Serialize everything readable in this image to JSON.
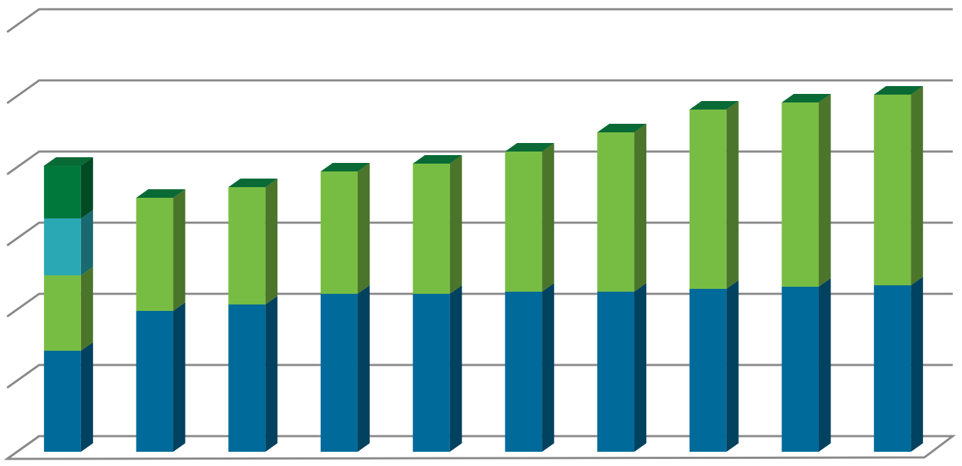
{
  "chart_data": {
    "type": "bar",
    "stacked": true,
    "three_d": true,
    "categories": [
      null,
      null,
      null,
      null,
      null,
      null,
      null,
      null,
      null,
      null
    ],
    "series": [
      {
        "color": "#006a9a",
        "values": [
          1.42,
          1.98,
          2.07,
          2.22,
          2.22,
          2.25,
          2.25,
          2.29,
          2.32,
          2.34
        ]
      },
      {
        "color": "#78bd43",
        "values": [
          1.06,
          1.59,
          1.65,
          1.72,
          1.83,
          1.97,
          2.24,
          2.52,
          2.59,
          2.68
        ]
      },
      {
        "color": "#2aa9b4",
        "values": [
          0.8,
          null,
          null,
          null,
          null,
          null,
          null,
          null,
          null,
          null
        ]
      },
      {
        "color": "#00783c",
        "values": [
          0.74,
          null,
          null,
          null,
          null,
          null,
          null,
          null,
          null,
          null
        ]
      }
    ],
    "ylim": [
      0,
      6
    ],
    "yticks": [
      0,
      1,
      2,
      3,
      4,
      5,
      6
    ],
    "grid": true
  }
}
